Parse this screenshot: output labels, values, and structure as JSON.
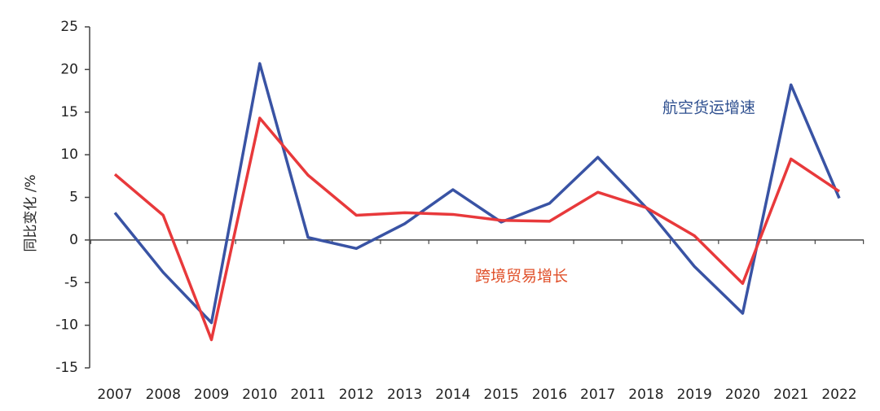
{
  "chart_data": {
    "type": "line",
    "y_label": "同比变化 /%",
    "categories": [
      "2007",
      "2008",
      "2009",
      "2010",
      "2011",
      "2012",
      "2013",
      "2014",
      "2015",
      "2016",
      "2017",
      "2018",
      "2019",
      "2020",
      "2021",
      "2022"
    ],
    "series": [
      {
        "name": "航空货运增速",
        "color": "#3953a4",
        "label_color": "#2e4f8f",
        "values": [
          3.2,
          -3.8,
          -9.7,
          20.7,
          0.3,
          -1.0,
          1.9,
          5.9,
          2.1,
          4.3,
          9.7,
          3.8,
          -3.1,
          -8.6,
          18.2,
          4.9
        ]
      },
      {
        "name": "跨境贸易增长",
        "color": "#e8393b",
        "label_color": "#e0502a",
        "values": [
          7.7,
          2.9,
          -11.7,
          14.3,
          7.6,
          2.9,
          3.2,
          3.0,
          2.3,
          2.2,
          5.6,
          3.8,
          0.5,
          -5.1,
          9.5,
          5.7
        ]
      }
    ],
    "ylim": [
      -15,
      25
    ],
    "yticks": [
      -15,
      -10,
      -5,
      0,
      5,
      10,
      15,
      20,
      25
    ],
    "grid": false
  }
}
